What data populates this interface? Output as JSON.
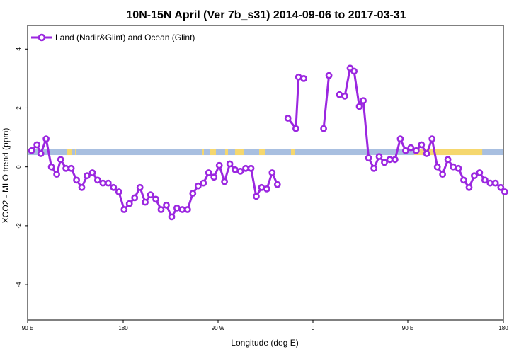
{
  "chart_data": {
    "type": "line",
    "title": "10N-15N April (Ver 7b_s31)   2014-09-06 to 2017-03-31",
    "xlabel": "Longitude (deg E)",
    "ylabel": "XCO2 - MLO trend (ppm)",
    "xlim": [
      90,
      450
    ],
    "ylim": [
      -5.2,
      4.8
    ],
    "x_ticks": [
      {
        "value": 90,
        "label": "90 E"
      },
      {
        "value": 180,
        "label": "180"
      },
      {
        "value": 270,
        "label": "90 W"
      },
      {
        "value": 360,
        "label": "0"
      },
      {
        "value": 450,
        "label": "90 E"
      },
      {
        "value": 540,
        "label": "180"
      }
    ],
    "y_ticks": [
      {
        "value": -4,
        "label": "-4"
      },
      {
        "value": -2,
        "label": "-2"
      },
      {
        "value": 0,
        "label": "0"
      },
      {
        "value": 2,
        "label": "2"
      },
      {
        "value": 4,
        "label": "4"
      }
    ],
    "legend": {
      "position": "top-left"
    },
    "land_band": {
      "y_low": 0.4,
      "y_high": 0.6,
      "ocean_color": "#a8bfe0",
      "land_color": "#f5d76e"
    },
    "series": [
      {
        "name": "Land (Nadir&Glint) and Ocean (Glint)",
        "color": "#9b27e0",
        "segments": [
          [
            [
              93,
              0.55
            ],
            [
              97,
              0.75
            ],
            [
              100,
              0.45
            ],
            [
              104,
              0.95
            ],
            [
              108,
              0.0
            ],
            [
              112,
              -0.25
            ],
            [
              115,
              0.25
            ],
            [
              119,
              -0.05
            ],
            [
              123,
              -0.05
            ],
            [
              127,
              -0.45
            ],
            [
              131,
              -0.7
            ],
            [
              135,
              -0.3
            ],
            [
              139,
              -0.2
            ],
            [
              143,
              -0.45
            ],
            [
              147,
              -0.55
            ],
            [
              151,
              -0.55
            ],
            [
              155,
              -0.7
            ],
            [
              159,
              -0.85
            ],
            [
              163,
              -1.45
            ],
            [
              167,
              -1.25
            ],
            [
              171,
              -1.05
            ],
            [
              175,
              -0.7
            ],
            [
              179,
              -1.2
            ],
            [
              183,
              -0.95
            ],
            [
              187,
              -1.1
            ],
            [
              191,
              -1.45
            ],
            [
              195,
              -1.3
            ],
            [
              199,
              -1.7
            ],
            [
              203,
              -1.4
            ],
            [
              207,
              -1.45
            ],
            [
              211,
              -1.45
            ],
            [
              215,
              -0.9
            ],
            [
              219,
              -0.65
            ],
            [
              223,
              -0.55
            ],
            [
              227,
              -0.2
            ],
            [
              231,
              -0.35
            ],
            [
              235,
              0.05
            ],
            [
              239,
              -0.5
            ],
            [
              243,
              0.1
            ],
            [
              247,
              -0.1
            ],
            [
              251,
              -0.15
            ],
            [
              255,
              -0.05
            ],
            [
              259,
              -0.05
            ],
            [
              263,
              -1.0
            ],
            [
              267,
              -0.7
            ],
            [
              271,
              -0.75
            ],
            [
              275,
              -0.2
            ],
            [
              279,
              -0.6
            ]
          ],
          [
            [
              287,
              1.65
            ],
            [
              293,
              1.3
            ],
            [
              295,
              3.05
            ],
            [
              299,
              3.0
            ]
          ],
          [
            [
              314,
              1.3
            ],
            [
              318,
              3.1
            ]
          ],
          [
            [
              326,
              2.45
            ],
            [
              330,
              2.4
            ],
            [
              334,
              3.35
            ],
            [
              337,
              3.25
            ],
            [
              341,
              2.05
            ],
            [
              344,
              2.25
            ],
            [
              348,
              0.3
            ],
            [
              352,
              -0.05
            ],
            [
              356,
              0.35
            ],
            [
              360,
              0.15
            ],
            [
              364,
              0.25
            ],
            [
              368,
              0.25
            ],
            [
              372,
              0.95
            ],
            [
              376,
              0.55
            ],
            [
              380,
              0.65
            ],
            [
              384,
              0.55
            ],
            [
              388,
              0.75
            ],
            [
              392,
              0.45
            ],
            [
              396,
              0.95
            ],
            [
              400,
              0.0
            ],
            [
              404,
              -0.25
            ],
            [
              408,
              0.25
            ],
            [
              412,
              0.0
            ],
            [
              416,
              -0.05
            ],
            [
              420,
              -0.45
            ],
            [
              424,
              -0.7
            ],
            [
              428,
              -0.3
            ],
            [
              432,
              -0.2
            ],
            [
              436,
              -0.45
            ],
            [
              440,
              -0.55
            ],
            [
              444,
              -0.55
            ],
            [
              448,
              -0.7
            ],
            [
              451,
              -0.85
            ]
          ]
        ]
      }
    ]
  }
}
